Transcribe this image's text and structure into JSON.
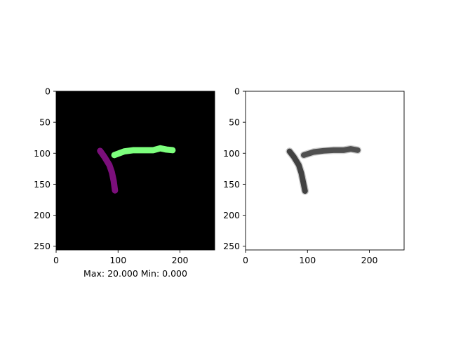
{
  "chart_data": [
    {
      "type": "heatmap",
      "description_role": "label map",
      "xlim": [
        0,
        256
      ],
      "ylim": [
        256,
        0
      ],
      "xticks": [
        0,
        100,
        200
      ],
      "yticks": [
        0,
        50,
        100,
        150,
        200,
        250
      ],
      "background_color": "#000000",
      "caption": "Max: 20.000 Min: 0.000",
      "strokes": [
        {
          "color": "#7b0f7b",
          "width": 10,
          "points": [
            [
              71,
              96
            ],
            [
              78,
              106
            ],
            [
              86,
              119
            ],
            [
              90,
              131
            ],
            [
              93,
              145
            ],
            [
              95,
              160
            ]
          ]
        },
        {
          "color": "#7dff7d",
          "width": 10,
          "points": [
            [
              94,
              103
            ],
            [
              110,
              97
            ],
            [
              125,
              95
            ],
            [
              142,
              95
            ],
            [
              157,
              95
            ],
            [
              168,
              92
            ],
            [
              178,
              94
            ],
            [
              188,
              95
            ]
          ]
        }
      ]
    },
    {
      "type": "heatmap",
      "description_role": "grayscale image",
      "xlim": [
        0,
        256
      ],
      "ylim": [
        256,
        0
      ],
      "xticks": [
        0,
        100,
        200
      ],
      "yticks": [
        0,
        50,
        100,
        150,
        200,
        250
      ],
      "background_color": "#ffffff",
      "caption": "",
      "strokes": [
        {
          "color": "#2a2a2a",
          "width": 9,
          "points": [
            [
              71,
              97
            ],
            [
              78,
              106
            ],
            [
              86,
              119
            ],
            [
              90,
              132
            ],
            [
              93,
              146
            ],
            [
              96,
              161
            ]
          ]
        },
        {
          "color": "#3a3a3a",
          "width": 9,
          "points": [
            [
              94,
              103
            ],
            [
              110,
              98
            ],
            [
              126,
              96
            ],
            [
              142,
              95
            ],
            [
              158,
              95
            ],
            [
              170,
              93
            ],
            [
              181,
              95
            ]
          ]
        }
      ]
    }
  ]
}
